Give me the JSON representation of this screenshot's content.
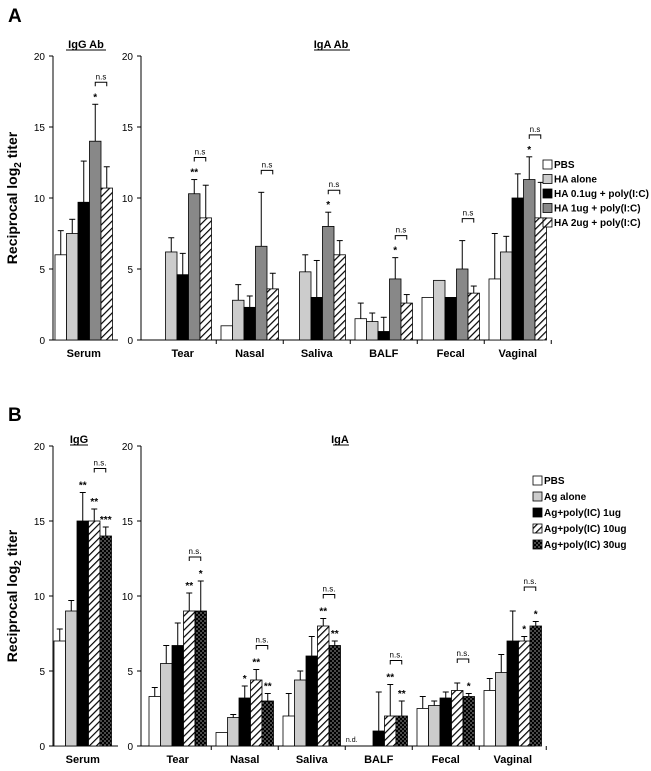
{
  "chart_data": [
    {
      "panel_label": "A",
      "type": "bar",
      "ylabel_main": "Reciprocal log",
      "ylabel_sub": "2",
      "ylabel_tail": " titer",
      "ylim": [
        0,
        20
      ],
      "yticks": [
        "0",
        "5",
        "10",
        "15",
        "20"
      ],
      "ytick_values": [
        0,
        5,
        10,
        15,
        20
      ],
      "subplots": [
        {
          "title": "IgG Ab",
          "categories": [
            "Serum"
          ],
          "series": [
            {
              "name": "PBS",
              "values": [
                6.0
              ],
              "errors": [
                1.7
              ]
            },
            {
              "name": "HA alone",
              "values": [
                7.5
              ],
              "errors": [
                1.0
              ]
            },
            {
              "name": "HA 0.1ug + poly(I:C)",
              "values": [
                9.7
              ],
              "errors": [
                2.9
              ]
            },
            {
              "name": "HA 1ug + poly(I:C)",
              "values": [
                14.0
              ],
              "errors": [
                2.6
              ]
            },
            {
              "name": "HA 2ug + poly(I:C)",
              "values": [
                10.7
              ],
              "errors": [
                1.5
              ]
            }
          ],
          "annotations": [
            {
              "category": 0,
              "series": 3,
              "text": "*"
            },
            {
              "category": 0,
              "from": 3,
              "to": 4,
              "text": "n.s",
              "bracket": true
            }
          ]
        },
        {
          "title": "IgA Ab",
          "categories": [
            "Tear",
            "Nasal",
            "Saliva",
            "BALF",
            "Fecal",
            "Vaginal"
          ],
          "series": [
            {
              "name": "PBS",
              "values": [
                null,
                1.0,
                null,
                1.5,
                3.0,
                4.3
              ],
              "errors": [
                null,
                0,
                null,
                1.1,
                0,
                3.2
              ]
            },
            {
              "name": "HA alone",
              "values": [
                6.2,
                2.8,
                4.8,
                1.3,
                4.2,
                6.2
              ],
              "errors": [
                1.0,
                1.1,
                1.2,
                0.6,
                0,
                1.1
              ]
            },
            {
              "name": "HA 0.1ug + poly(I:C)",
              "values": [
                4.6,
                2.3,
                3.0,
                0.6,
                3.0,
                10.0
              ],
              "errors": [
                1.5,
                0.8,
                2.6,
                1.0,
                0,
                1.7
              ]
            },
            {
              "name": "HA 1ug + poly(I:C)",
              "values": [
                10.3,
                6.6,
                8.0,
                4.3,
                5.0,
                11.3
              ],
              "errors": [
                1.0,
                3.8,
                1.0,
                1.5,
                2.0,
                1.6
              ]
            },
            {
              "name": "HA 2ug + poly(I:C)",
              "values": [
                8.6,
                3.6,
                6.0,
                2.6,
                3.3,
                8.6
              ],
              "errors": [
                2.3,
                1.1,
                1.0,
                0.6,
                0.5,
                2.5
              ]
            }
          ],
          "annotations": [
            {
              "category": 0,
              "series": 3,
              "text": "**"
            },
            {
              "category": 0,
              "from": 3,
              "to": 4,
              "text": "n.s",
              "bracket": true
            },
            {
              "category": 1,
              "from": 3,
              "to": 4,
              "text": "n.s",
              "bracket": true
            },
            {
              "category": 2,
              "series": 3,
              "text": "*"
            },
            {
              "category": 2,
              "from": 3,
              "to": 4,
              "text": "n.s",
              "bracket": true
            },
            {
              "category": 3,
              "series": 3,
              "text": "*"
            },
            {
              "category": 3,
              "from": 3,
              "to": 4,
              "text": "n.s",
              "bracket": true
            },
            {
              "category": 4,
              "from": 3,
              "to": 4,
              "text": "n.s",
              "bracket": true
            },
            {
              "category": 5,
              "series": 3,
              "text": "*"
            },
            {
              "category": 5,
              "from": 3,
              "to": 4,
              "text": "n.s",
              "bracket": true
            }
          ]
        }
      ],
      "legend": [
        "PBS",
        "HA alone",
        "HA 0.1ug + poly(I:C)",
        "HA 1ug + poly(I:C)",
        "HA 2ug + poly(I:C)"
      ],
      "legend_position": "right"
    },
    {
      "panel_label": "B",
      "type": "bar",
      "ylabel_main": "Reciprocal log",
      "ylabel_sub": "2",
      "ylabel_tail": " titer",
      "ylim": [
        0,
        20
      ],
      "yticks": [
        "0",
        "5",
        "10",
        "15",
        "20"
      ],
      "ytick_values": [
        0,
        5,
        10,
        15,
        20
      ],
      "subplots": [
        {
          "title": "IgG",
          "categories": [
            "Serum"
          ],
          "series": [
            {
              "name": "PBS",
              "values": [
                7.0
              ],
              "errors": [
                0.8
              ]
            },
            {
              "name": "Ag alone",
              "values": [
                9.0
              ],
              "errors": [
                0.7
              ]
            },
            {
              "name": "Ag+poly(IC) 1ug",
              "values": [
                15.0
              ],
              "errors": [
                1.9
              ]
            },
            {
              "name": "Ag+poly(IC) 10ug",
              "values": [
                15.0
              ],
              "errors": [
                0.8
              ]
            },
            {
              "name": "Ag+poly(IC) 30ug",
              "values": [
                14.0
              ],
              "errors": [
                0.6
              ]
            }
          ],
          "annotations": [
            {
              "category": 0,
              "series": 2,
              "text": "**"
            },
            {
              "category": 0,
              "series": 3,
              "text": "**"
            },
            {
              "category": 0,
              "series": 4,
              "text": "***"
            },
            {
              "category": 0,
              "from": 3,
              "to": 4,
              "text": "n.s.",
              "bracket": true
            }
          ]
        },
        {
          "title": "IgA",
          "categories": [
            "Tear",
            "Nasal",
            "Saliva",
            "BALF",
            "Fecal",
            "Vaginal"
          ],
          "series": [
            {
              "name": "PBS",
              "values": [
                3.3,
                0.9,
                2.0,
                null,
                2.5,
                3.7
              ],
              "errors": [
                0.6,
                0,
                1.5,
                null,
                0.8,
                0.8
              ]
            },
            {
              "name": "Ag alone",
              "values": [
                5.5,
                1.9,
                4.4,
                0.0,
                2.7,
                4.9
              ],
              "errors": [
                1.2,
                0.2,
                0.6,
                0,
                0.3,
                1.2
              ]
            },
            {
              "name": "Ag+poly(IC) 1ug",
              "values": [
                6.7,
                3.2,
                6.0,
                1.0,
                3.2,
                7.0
              ],
              "errors": [
                1.5,
                0.8,
                1.3,
                2.6,
                0.4,
                2.0
              ]
            },
            {
              "name": "Ag+poly(IC) 10ug",
              "values": [
                9.0,
                4.4,
                8.0,
                2.0,
                3.7,
                7.0
              ],
              "errors": [
                1.2,
                0.7,
                0.5,
                2.1,
                0.5,
                0.3
              ]
            },
            {
              "name": "Ag+poly(IC) 30ug",
              "values": [
                9.0,
                3.0,
                6.7,
                2.0,
                3.3,
                8.0
              ],
              "errors": [
                2.0,
                0.5,
                0.3,
                1.0,
                0.2,
                0.3
              ]
            }
          ],
          "annotations": [
            {
              "category": 0,
              "series": 3,
              "text": "**"
            },
            {
              "category": 0,
              "series": 4,
              "text": "*"
            },
            {
              "category": 0,
              "from": 3,
              "to": 4,
              "text": "n.s.",
              "bracket": true
            },
            {
              "category": 1,
              "series": 2,
              "text": "*"
            },
            {
              "category": 1,
              "series": 3,
              "text": "**"
            },
            {
              "category": 1,
              "series": 4,
              "text": "**"
            },
            {
              "category": 1,
              "from": 3,
              "to": 4,
              "text": "n.s.",
              "bracket": true
            },
            {
              "category": 2,
              "series": 3,
              "text": "**"
            },
            {
              "category": 2,
              "series": 4,
              "text": "**"
            },
            {
              "category": 2,
              "from": 3,
              "to": 4,
              "text": "n.s.",
              "bracket": true
            },
            {
              "category": 3,
              "series": 0,
              "text": "n.d.",
              "baseline": true
            },
            {
              "category": 3,
              "series": 3,
              "text": "**"
            },
            {
              "category": 3,
              "series": 4,
              "text": "**"
            },
            {
              "category": 3,
              "from": 3,
              "to": 4,
              "text": "n.s.",
              "bracket": true
            },
            {
              "category": 4,
              "series": 4,
              "text": "*"
            },
            {
              "category": 4,
              "from": 3,
              "to": 4,
              "text": "n.s.",
              "bracket": true
            },
            {
              "category": 5,
              "series": 3,
              "text": "*"
            },
            {
              "category": 5,
              "series": 4,
              "text": "*"
            },
            {
              "category": 5,
              "from": 3,
              "to": 4,
              "text": "n.s.",
              "bracket": true
            }
          ]
        }
      ],
      "legend": [
        "PBS",
        "Ag alone",
        "Ag+poly(IC) 1ug",
        "Ag+poly(IC) 10ug",
        "Ag+poly(IC) 30ug"
      ],
      "legend_position": "right"
    }
  ],
  "colors": {
    "white": "#ffffff",
    "light_gray": "#cccccc",
    "black": "#000000",
    "dark_gray": "#888888",
    "axis": "#000000"
  }
}
